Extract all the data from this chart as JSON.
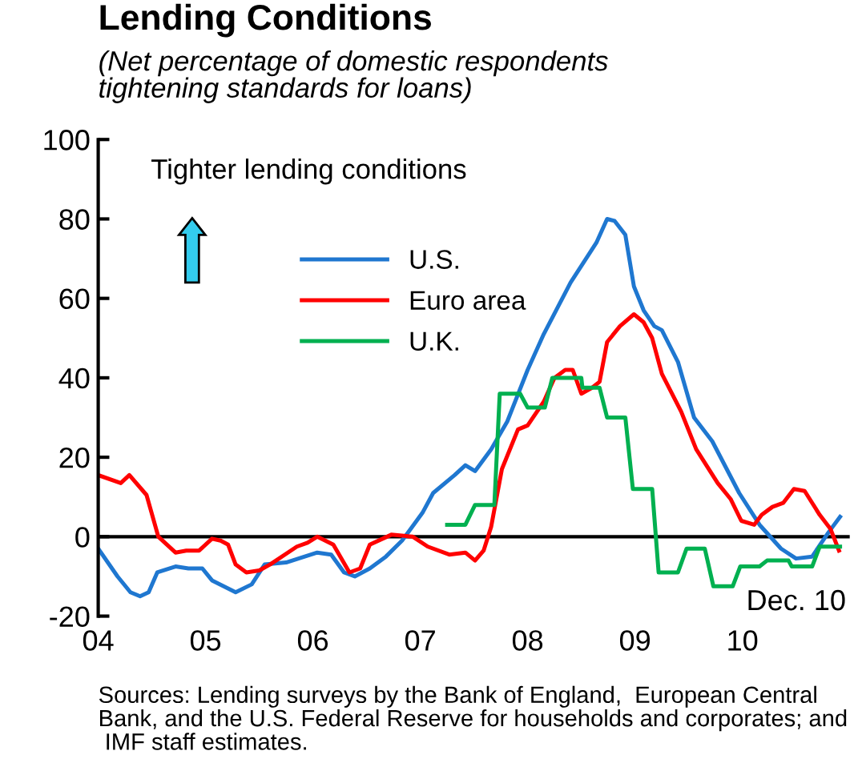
{
  "chart_data": {
    "type": "line",
    "title": "Lending Conditions",
    "subtitle": "(Net percentage of domestic respondents\ntightening standards for loans)",
    "xlim": [
      2004,
      2011
    ],
    "xticks": [
      {
        "value": 2004,
        "label": "04"
      },
      {
        "value": 2005,
        "label": "05"
      },
      {
        "value": 2006,
        "label": "06"
      },
      {
        "value": 2007,
        "label": "07"
      },
      {
        "value": 2008,
        "label": "08"
      },
      {
        "value": 2009,
        "label": "09"
      },
      {
        "value": 2010,
        "label": "10"
      }
    ],
    "ylim": [
      -20,
      100
    ],
    "yticks": [
      -20,
      0,
      20,
      40,
      60,
      80,
      100
    ],
    "grid": false,
    "legend": "top",
    "line_style": "solid",
    "ref_lines": [
      {
        "axis": "y",
        "value": 0,
        "color": "#000000"
      }
    ],
    "annotations": [
      "Tighter lending conditions",
      "Dec. 10",
      "Sources: Lending surveys by the Bank of England,  European Central Bank, and the U.S. Federal Reserve for households and corporates; and  IMF staff estimates."
    ],
    "series": [
      {
        "name": "U.S.",
        "color": "#1f77d0",
        "x": [
          2004.0,
          2004.18,
          2004.3,
          2004.39,
          2004.47,
          2004.55,
          2004.72,
          2004.84,
          2004.97,
          2005.06,
          2005.28,
          2005.43,
          2005.55,
          2005.75,
          2006.04,
          2006.17,
          2006.29,
          2006.39,
          2006.53,
          2006.68,
          2006.83,
          2007.02,
          2007.12,
          2007.32,
          2007.42,
          2007.51,
          2007.66,
          2007.81,
          2008.0,
          2008.15,
          2008.4,
          2008.64,
          2008.74,
          2008.81,
          2008.91,
          2008.99,
          2009.08,
          2009.18,
          2009.25,
          2009.4,
          2009.55,
          2009.72,
          2009.97,
          2010.16,
          2010.36,
          2010.5,
          2010.65,
          2010.8,
          2010.91
        ],
        "values": [
          -3,
          -10,
          -14,
          -15,
          -14,
          -9,
          -7.5,
          -8,
          -8,
          -11,
          -14,
          -12,
          -7,
          -6.5,
          -4,
          -4.5,
          -9,
          -10,
          -8,
          -5,
          -1,
          6,
          11,
          15.5,
          18,
          16.5,
          22,
          29,
          42,
          51,
          64,
          74,
          80,
          79.5,
          76,
          63,
          57,
          53,
          52,
          44,
          30,
          24,
          11,
          3,
          -3,
          -5.5,
          -5,
          1,
          5
        ]
      },
      {
        "name": "Euro area",
        "color": "#ff0000",
        "x": [
          2004.0,
          2004.21,
          2004.29,
          2004.45,
          2004.56,
          2004.72,
          2004.82,
          2004.94,
          2005.06,
          2005.14,
          2005.21,
          2005.28,
          2005.38,
          2005.5,
          2005.6,
          2005.85,
          2005.95,
          2006.04,
          2006.19,
          2006.34,
          2006.44,
          2006.53,
          2006.73,
          2006.93,
          2007.07,
          2007.27,
          2007.42,
          2007.51,
          2007.59,
          2007.66,
          2007.76,
          2007.91,
          2008.0,
          2008.15,
          2008.25,
          2008.35,
          2008.42,
          2008.5,
          2008.6,
          2008.67,
          2008.74,
          2008.86,
          2008.99,
          2009.08,
          2009.16,
          2009.25,
          2009.43,
          2009.57,
          2009.77,
          2009.89,
          2009.99,
          2010.11,
          2010.18,
          2010.28,
          2010.38,
          2010.48,
          2010.58,
          2010.72,
          2010.82,
          2010.9
        ],
        "values": [
          15.5,
          13.5,
          15.5,
          10.5,
          0,
          -4,
          -3.5,
          -3.5,
          -0.5,
          -1,
          -2,
          -7,
          -9,
          -8.5,
          -7,
          -2.5,
          -1.5,
          0,
          -2,
          -9,
          -8,
          -2,
          0.5,
          0,
          -2.5,
          -4.5,
          -4,
          -6,
          -3.5,
          2.5,
          17,
          27,
          28,
          34,
          40,
          42,
          42,
          36,
          37.5,
          39,
          49,
          53,
          56,
          54,
          50,
          41,
          31.5,
          22,
          13.5,
          9.5,
          4,
          3,
          5.5,
          7.5,
          8.5,
          12,
          11.5,
          5.5,
          2,
          -3.5
        ]
      },
      {
        "name": "U.K.",
        "color": "#00b050",
        "x": [
          2007.25,
          2007.42,
          2007.51,
          2007.69,
          2007.74,
          2007.93,
          2008.0,
          2008.16,
          2008.23,
          2008.5,
          2008.51,
          2008.67,
          2008.74,
          2008.91,
          2008.98,
          2009.16,
          2009.22,
          2009.4,
          2009.48,
          2009.65,
          2009.73,
          2009.91,
          2009.98,
          2010.16,
          2010.23,
          2010.43,
          2010.46,
          2010.65,
          2010.72,
          2010.91
        ],
        "values": [
          3,
          3,
          8,
          8,
          36,
          36,
          32.5,
          32.5,
          40,
          40,
          37.5,
          37.5,
          30,
          30,
          12,
          12,
          -9,
          -9,
          -3,
          -3,
          -12.5,
          -12.5,
          -7.5,
          -7.5,
          -6,
          -6,
          -7.5,
          -7.5,
          -2.5,
          -2.5
        ]
      }
    ]
  }
}
